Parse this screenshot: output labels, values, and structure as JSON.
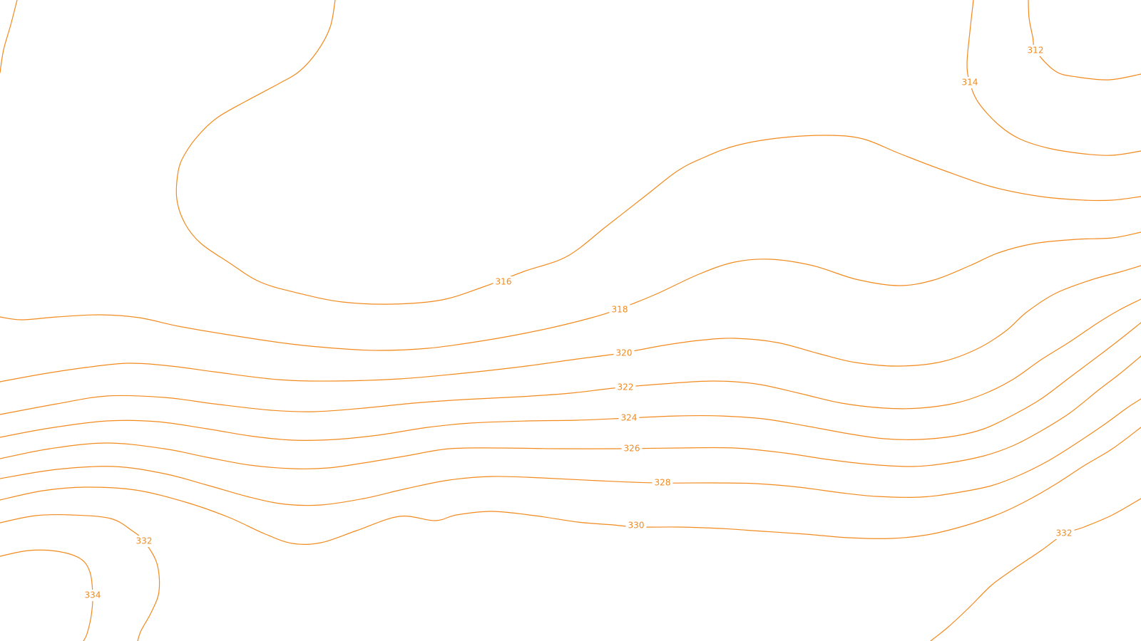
{
  "map": {
    "line_color": "#f28a1e",
    "background": "#ffffff",
    "contours": [
      {
        "name": "contour-316-west",
        "label": "316"
      },
      {
        "name": "contour-318",
        "label": "318"
      },
      {
        "name": "contour-320",
        "label": "320"
      },
      {
        "name": "contour-322",
        "label": "322"
      },
      {
        "name": "contour-324",
        "label": "324"
      },
      {
        "name": "contour-326",
        "label": "326"
      },
      {
        "name": "contour-328",
        "label": "328"
      },
      {
        "name": "contour-330",
        "label": "330"
      },
      {
        "name": "contour-332-west",
        "label": "332"
      },
      {
        "name": "contour-332-east",
        "label": "332"
      },
      {
        "name": "contour-334",
        "label": "334"
      },
      {
        "name": "contour-314",
        "label": "314"
      },
      {
        "name": "contour-312",
        "label": "312"
      },
      {
        "name": "contour-316-east",
        "label": ""
      }
    ]
  }
}
